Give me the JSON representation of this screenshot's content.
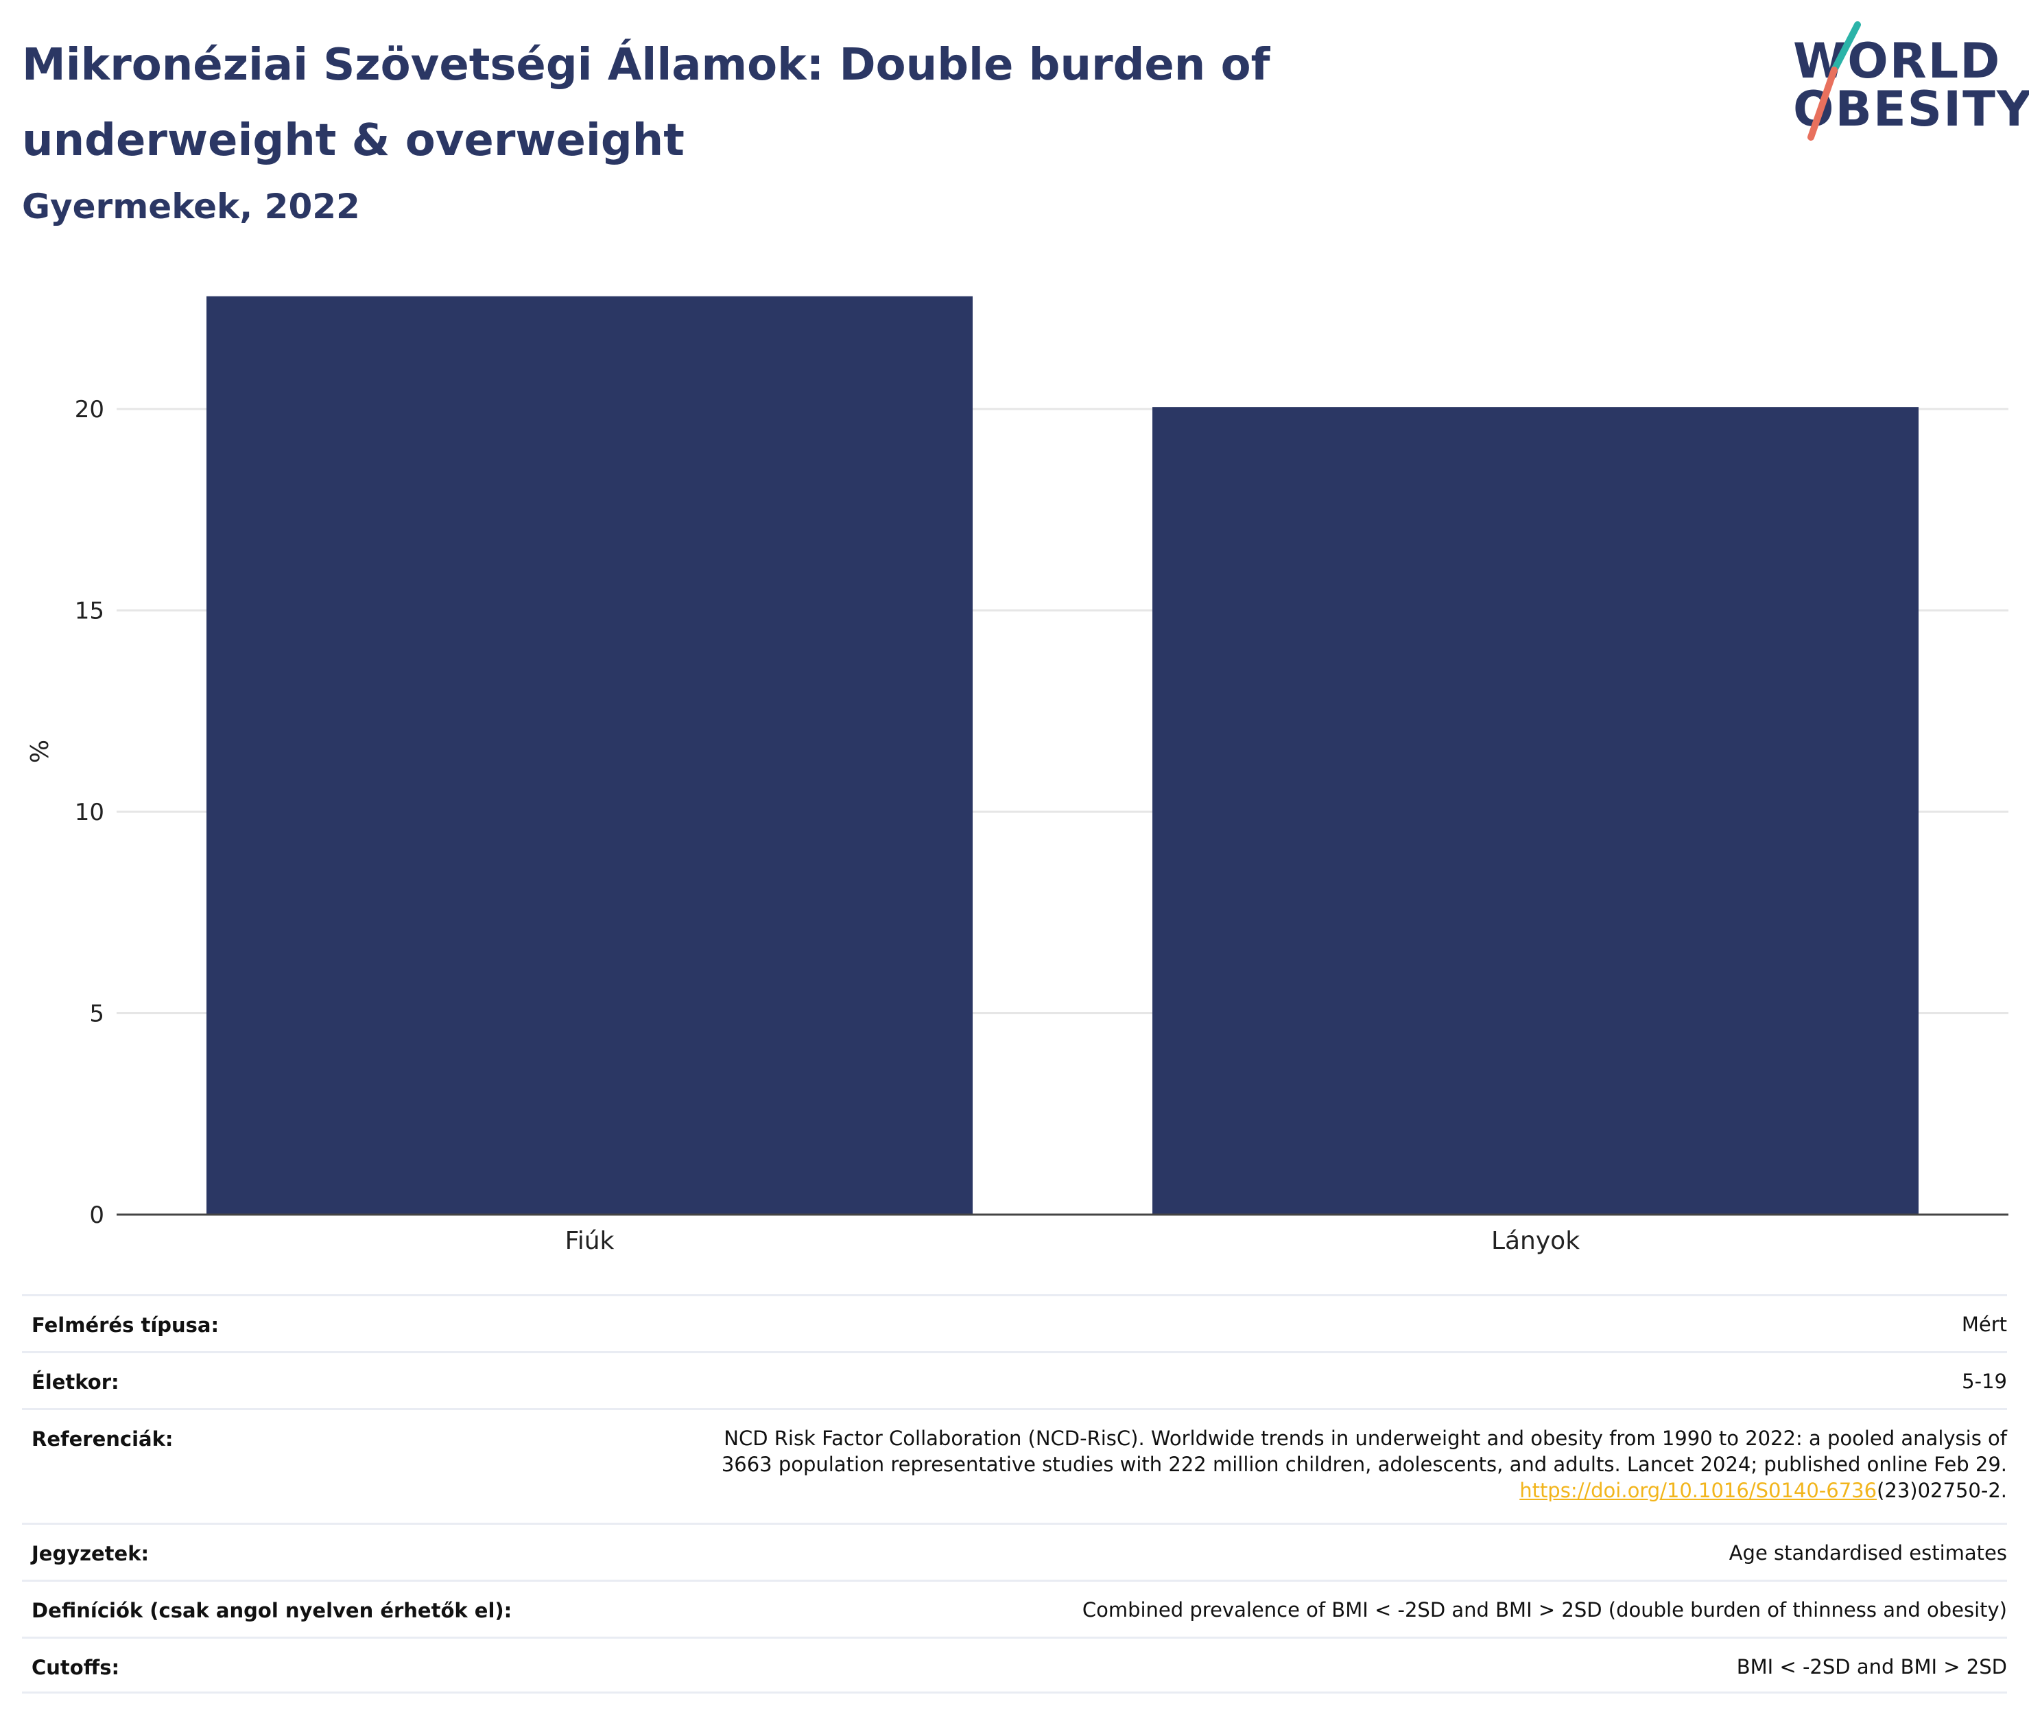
{
  "header": {
    "title": "Mikronéziai Szövetségi Államok: Double burden of underweight & overweight",
    "subtitle": "Gyermekek, 2022",
    "logo_line1": "WORLD",
    "logo_line2": "OBESITY"
  },
  "colors": {
    "bar": "#2b3764",
    "text": "#2b3764",
    "link": "#f2b51c",
    "logo_teal": "#2bb3a8",
    "logo_coral": "#e8705d"
  },
  "chart_data": {
    "type": "bar",
    "categories": [
      "Fiúk",
      "Lányok"
    ],
    "values": [
      22.8,
      20.05
    ],
    "ylabel": "%",
    "xlabel": "",
    "ylim": [
      0,
      23
    ],
    "yticks": [
      0,
      5,
      10,
      15,
      20
    ],
    "grid": true
  },
  "meta": {
    "rows": [
      {
        "label": "Felmérés típusa:",
        "value": "Mért"
      },
      {
        "label": "Életkor:",
        "value": "5-19"
      },
      {
        "label": "Referenciák:",
        "value_lines": [
          "NCD Risk Factor Collaboration (NCD-RisC). Worldwide trends in underweight and obesity from 1990 to 2022: a pooled analysis of",
          "3663 population representative studies with 222 million children, adolescents, and adults. Lancet 2024; published online Feb 29."
        ],
        "link_text": "https://doi.org/10.1016/S0140-6736",
        "link_suffix": "(23)02750-2."
      },
      {
        "label": "Jegyzetek:",
        "value": "Age standardised estimates"
      },
      {
        "label": "Definíciók (csak angol nyelven érhetők el):",
        "value": "Combined prevalence of BMI < -2SD and BMI > 2SD (double burden of thinness and obesity)"
      },
      {
        "label": "Cutoffs:",
        "value": "BMI < -2SD and BMI > 2SD"
      }
    ]
  }
}
